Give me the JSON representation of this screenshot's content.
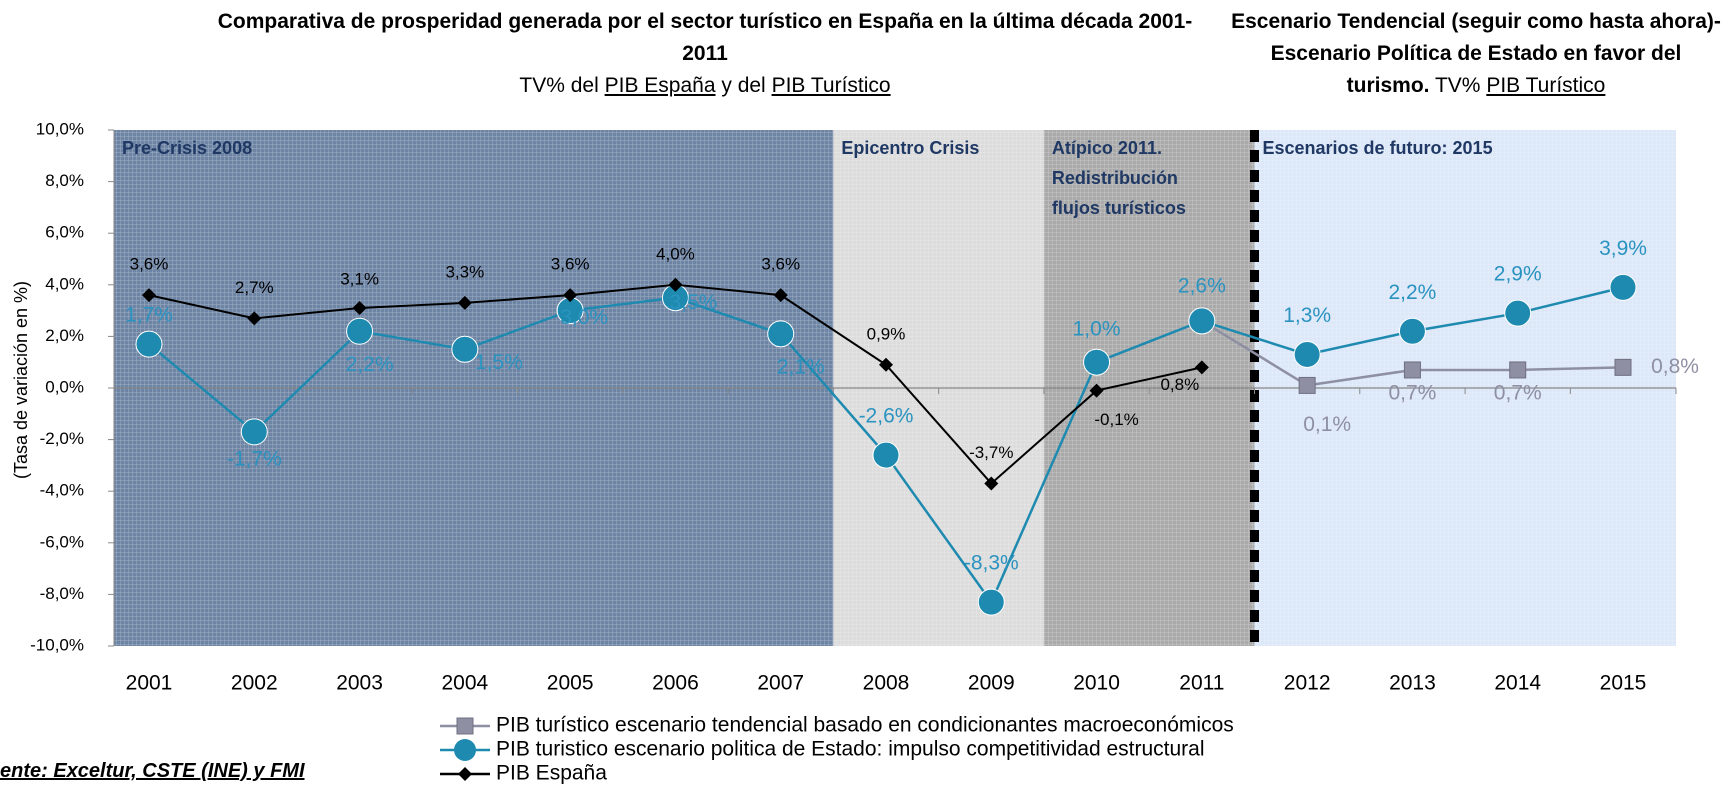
{
  "chart_data": {
    "type": "line",
    "title": "Comparativa de prosperidad generada por el sector turístico en España en la última década 2001-2011",
    "subtitle": [
      "TV% del",
      "PIB España",
      "y del",
      "PIB Turístico"
    ],
    "title_right": "Escenario Tendencial (seguir como hasta ahora)- Escenario Política de Estado en favor del turismo.",
    "subtitle_right": [
      "TV%",
      "PIB Turístico"
    ],
    "y_label": "(Tasa de variación en %)",
    "source": "ente: Exceltur, CSTE (INE) y FMI",
    "regions": [
      "Pre-Crisis 2008",
      "Epicentro Crisis",
      "Atípico 2011. Redistribución flujos turísticos",
      "Escenarios de futuro: 2015"
    ],
    "categories": [
      "2001",
      "2002",
      "2003",
      "2004",
      "2005",
      "2006",
      "2007",
      "2008",
      "2009",
      "2010",
      "2011",
      "2012",
      "2013",
      "2014",
      "2015"
    ],
    "series": [
      {
        "name": "PIB turístico escenario tendencial basado en condicionantes macroeconómicos",
        "color": "#8e8fa3",
        "values": [
          null,
          null,
          null,
          null,
          null,
          null,
          null,
          null,
          null,
          null,
          2.6,
          0.1,
          0.7,
          0.7,
          0.8
        ],
        "value_labels": [
          null,
          null,
          null,
          null,
          null,
          null,
          null,
          null,
          null,
          null,
          null,
          "0,1%",
          "0,7%",
          "0,7%",
          "0,8%"
        ]
      },
      {
        "name": "PIB turistico escenario politica de Estado: impulso competitividad estructural",
        "color": "#1f8ab0",
        "values": [
          1.7,
          -1.7,
          2.2,
          1.5,
          3.0,
          3.5,
          2.1,
          -2.6,
          -8.3,
          1.0,
          2.6,
          1.3,
          2.2,
          2.9,
          3.9
        ],
        "value_labels": [
          "1,7%",
          "-1,7%",
          "2,2%",
          "1,5%",
          "3,0%",
          "3,5%",
          "2,1%",
          "-2,6%",
          "-8,3%",
          "1,0%",
          "2,6%",
          "1,3%",
          "2,2%",
          "2,9%",
          "3,9%"
        ]
      },
      {
        "name": "PIB España",
        "color": "#000000",
        "values": [
          3.6,
          2.7,
          3.1,
          3.3,
          3.6,
          4.0,
          3.6,
          0.9,
          -3.7,
          -0.1,
          0.8,
          null,
          null,
          null,
          null
        ],
        "value_labels": [
          "3,6%",
          "2,7%",
          "3,1%",
          "3,3%",
          "3,6%",
          "4,0%",
          "3,6%",
          "0,9%",
          "-3,7%",
          "-0,1%",
          "0,8%",
          null,
          null,
          null,
          null
        ]
      }
    ],
    "ylim": [
      -10,
      10
    ],
    "yticks": [
      {
        "value": -10,
        "label": "-10,0%"
      },
      {
        "value": -8,
        "label": "-8,0%"
      },
      {
        "value": -6,
        "label": "-6,0%"
      },
      {
        "value": -4,
        "label": "-4,0%"
      },
      {
        "value": -2,
        "label": "-2,0%"
      },
      {
        "value": 0,
        "label": "0,0%"
      },
      {
        "value": 2,
        "label": "2,0%"
      },
      {
        "value": 4,
        "label": "4,0%"
      },
      {
        "value": 6,
        "label": "6,0%"
      },
      {
        "value": 8,
        "label": "8,0%"
      },
      {
        "value": 10,
        "label": "10,0%"
      }
    ],
    "grid": false
  }
}
